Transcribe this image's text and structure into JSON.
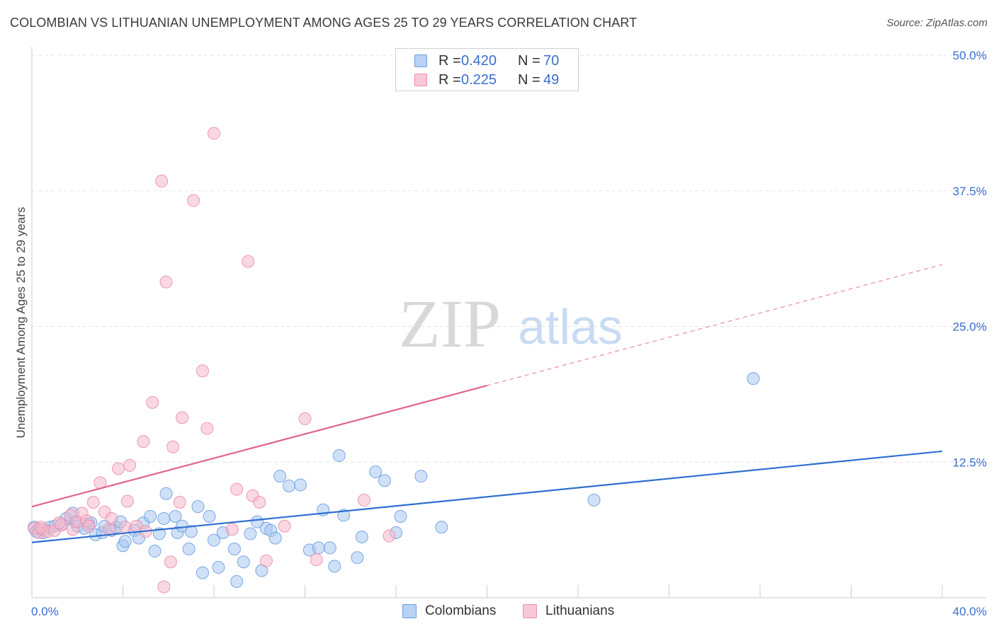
{
  "header": {
    "title": "COLOMBIAN VS LITHUANIAN UNEMPLOYMENT AMONG AGES 25 TO 29 YEARS CORRELATION CHART",
    "source": "Source: ZipAtlas.com"
  },
  "legend": {
    "rows": [
      {
        "r_label": "R =",
        "r_value": "0.420",
        "n_label": "N =",
        "n_value": "70"
      },
      {
        "r_label": "R =",
        "r_value": "0.225",
        "n_label": "N =",
        "n_value": "49"
      }
    ]
  },
  "watermark": {
    "zip": "ZIP",
    "atlas": "atlas"
  },
  "colors": {
    "colombians_fill": "#a9c8f0",
    "colombians_stroke": "#6c9ee0",
    "colombians_line": "#2f6fd1",
    "lithuanians_fill": "#f5b8cb",
    "lithuanians_stroke": "#ea8eac",
    "lithuanians_line": "#e0648e",
    "tick_label": "#3a6fcc"
  },
  "chart_data": {
    "type": "scatter",
    "title": "COLOMBIAN VS LITHUANIAN UNEMPLOYMENT AMONG AGES 25 TO 29 YEARS CORRELATION CHART",
    "xlabel": "",
    "ylabel": "Unemployment Among Ages 25 to 29 years",
    "xlim": [
      0,
      40
    ],
    "ylim": [
      0,
      50
    ],
    "x_ticks": [
      0,
      40
    ],
    "x_tick_labels": [
      "0.0%",
      "40.0%"
    ],
    "y_ticks": [
      12.5,
      25,
      37.5,
      50
    ],
    "y_tick_labels": [
      "12.5%",
      "25.0%",
      "37.5%",
      "50.0%"
    ],
    "legend_position": "bottom-center",
    "series": [
      {
        "name": "Colombians",
        "r": 0.42,
        "n": 70,
        "trend": {
          "x0": 0,
          "y0": 5.1,
          "x1": 40,
          "y1": 13.5,
          "solid_to": 40
        },
        "points": [
          [
            0.1,
            6.5
          ],
          [
            0.3,
            6.3
          ],
          [
            0.5,
            6.0
          ],
          [
            0.8,
            6.5
          ],
          [
            1.0,
            6.6
          ],
          [
            1.3,
            6.8
          ],
          [
            1.5,
            7.3
          ],
          [
            1.8,
            7.8
          ],
          [
            1.9,
            7.0
          ],
          [
            2.0,
            6.6
          ],
          [
            2.3,
            6.4
          ],
          [
            2.5,
            6.8
          ],
          [
            2.8,
            5.8
          ],
          [
            3.1,
            6.0
          ],
          [
            3.2,
            6.6
          ],
          [
            3.5,
            6.2
          ],
          [
            3.7,
            6.5
          ],
          [
            3.9,
            7.0
          ],
          [
            4.0,
            4.8
          ],
          [
            4.1,
            5.2
          ],
          [
            4.5,
            6.2
          ],
          [
            4.7,
            5.5
          ],
          [
            4.9,
            6.9
          ],
          [
            5.2,
            7.5
          ],
          [
            5.4,
            4.3
          ],
          [
            5.6,
            5.9
          ],
          [
            5.8,
            7.3
          ],
          [
            5.9,
            9.6
          ],
          [
            6.3,
            7.5
          ],
          [
            6.4,
            6.0
          ],
          [
            6.6,
            6.6
          ],
          [
            6.9,
            4.5
          ],
          [
            7.0,
            6.1
          ],
          [
            7.3,
            8.4
          ],
          [
            7.5,
            2.3
          ],
          [
            7.8,
            7.5
          ],
          [
            8.0,
            5.3
          ],
          [
            8.2,
            2.8
          ],
          [
            8.4,
            6.0
          ],
          [
            8.9,
            4.5
          ],
          [
            9.0,
            1.5
          ],
          [
            9.3,
            3.3
          ],
          [
            9.6,
            5.9
          ],
          [
            9.9,
            7.0
          ],
          [
            10.1,
            2.5
          ],
          [
            10.3,
            6.4
          ],
          [
            10.5,
            6.2
          ],
          [
            10.7,
            5.5
          ],
          [
            10.9,
            11.2
          ],
          [
            11.3,
            10.3
          ],
          [
            11.8,
            10.4
          ],
          [
            12.2,
            4.4
          ],
          [
            12.6,
            4.6
          ],
          [
            12.8,
            8.1
          ],
          [
            13.1,
            4.6
          ],
          [
            13.3,
            2.9
          ],
          [
            13.5,
            13.1
          ],
          [
            13.7,
            7.6
          ],
          [
            14.3,
            3.7
          ],
          [
            14.5,
            5.6
          ],
          [
            15.1,
            11.6
          ],
          [
            15.5,
            10.8
          ],
          [
            16.0,
            6.0
          ],
          [
            16.2,
            7.5
          ],
          [
            17.1,
            11.2
          ],
          [
            18.0,
            6.5
          ],
          [
            24.7,
            9.0
          ],
          [
            31.7,
            20.2
          ],
          [
            0.2,
            6.1
          ],
          [
            2.6,
            6.9
          ]
        ]
      },
      {
        "name": "Lithuanians",
        "r": 0.225,
        "n": 49,
        "trend": {
          "x0": 0,
          "y0": 8.4,
          "x1": 40,
          "y1": 30.7,
          "solid_to": 20
        },
        "points": [
          [
            0.1,
            6.4
          ],
          [
            0.3,
            6.0
          ],
          [
            0.5,
            6.3
          ],
          [
            0.7,
            6.1
          ],
          [
            1.0,
            6.2
          ],
          [
            1.3,
            6.7
          ],
          [
            1.7,
            7.6
          ],
          [
            1.8,
            6.3
          ],
          [
            2.0,
            7.0
          ],
          [
            2.2,
            7.8
          ],
          [
            2.4,
            7.1
          ],
          [
            2.5,
            6.6
          ],
          [
            2.7,
            8.8
          ],
          [
            3.0,
            10.6
          ],
          [
            3.2,
            7.9
          ],
          [
            3.5,
            7.3
          ],
          [
            3.8,
            11.9
          ],
          [
            4.1,
            6.5
          ],
          [
            4.2,
            8.9
          ],
          [
            4.3,
            12.2
          ],
          [
            4.6,
            6.6
          ],
          [
            4.9,
            14.4
          ],
          [
            5.0,
            6.1
          ],
          [
            5.3,
            18.0
          ],
          [
            5.7,
            38.4
          ],
          [
            5.8,
            1.0
          ],
          [
            5.9,
            29.1
          ],
          [
            6.1,
            3.3
          ],
          [
            6.2,
            13.9
          ],
          [
            6.5,
            8.8
          ],
          [
            6.6,
            16.6
          ],
          [
            7.1,
            36.6
          ],
          [
            7.5,
            20.9
          ],
          [
            7.7,
            15.6
          ],
          [
            8.0,
            42.8
          ],
          [
            8.8,
            6.3
          ],
          [
            9.0,
            10.0
          ],
          [
            9.5,
            31.0
          ],
          [
            9.7,
            9.4
          ],
          [
            10.0,
            8.8
          ],
          [
            10.3,
            3.4
          ],
          [
            11.1,
            6.6
          ],
          [
            12.0,
            16.5
          ],
          [
            12.5,
            3.5
          ],
          [
            14.6,
            9.0
          ],
          [
            15.7,
            5.7
          ],
          [
            1.2,
            6.9
          ],
          [
            3.4,
            6.3
          ],
          [
            0.4,
            6.5
          ]
        ]
      }
    ]
  },
  "bottom_legend": [
    {
      "label": "Colombians"
    },
    {
      "label": "Lithuanians"
    }
  ]
}
